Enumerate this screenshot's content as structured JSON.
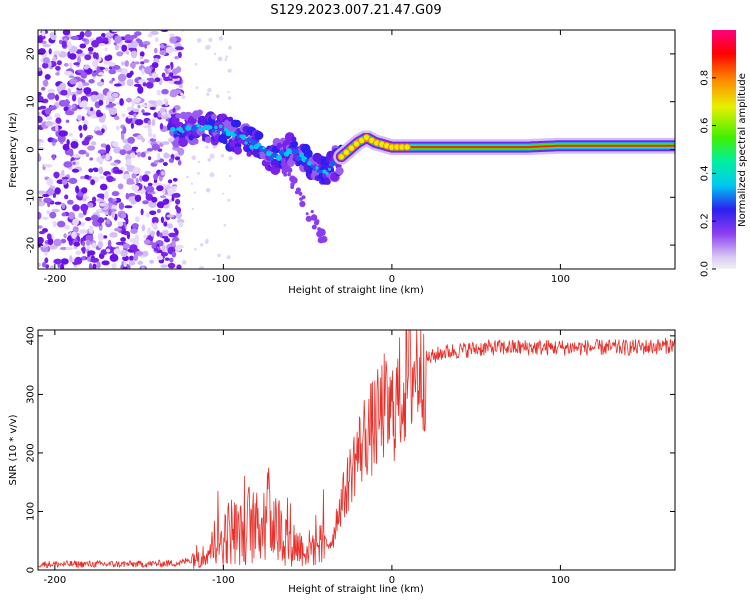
{
  "figure": {
    "title": "S129.2023.007.21.47.G09"
  },
  "colors": {
    "snr_line": "#e8302a",
    "axes": "#000000",
    "background": "#ffffff",
    "spectrogram_cmap": "hsv (purple→blue→cyan→green→yellow→red→magenta)"
  },
  "chart_data": [
    {
      "type": "heatmap",
      "title": "",
      "xlabel": "Height of straight line (km)",
      "ylabel": "Frequency (Hz)",
      "xlim": [
        -210,
        168
      ],
      "ylim": [
        -25,
        25
      ],
      "xticks": [
        -200,
        -100,
        0,
        100
      ],
      "yticks": [
        -20,
        -10,
        0,
        10,
        20
      ],
      "colorbar": {
        "label": "Normalized spectral amplitude",
        "range": [
          0.0,
          1.0
        ],
        "ticks": [
          0.0,
          0.2,
          0.4,
          0.6,
          0.8
        ]
      },
      "ridge": {
        "x": [
          -130,
          -120,
          -110,
          -100,
          -90,
          -80,
          -70,
          -60,
          -50,
          -45,
          -40,
          -35,
          -30,
          -25,
          -20,
          -15,
          -10,
          -5,
          0,
          10,
          20,
          40,
          60,
          80,
          100,
          120,
          140,
          168
        ],
        "y": [
          4,
          4.5,
          5,
          4,
          2.5,
          0.5,
          -1.5,
          0,
          -2.5,
          -4.5,
          -5,
          -3.5,
          -1.5,
          0,
          1.5,
          2.5,
          1.5,
          1,
          0.5,
          0.5,
          0.5,
          0.5,
          0.5,
          0.5,
          0.8,
          0.8,
          0.8,
          0.8
        ]
      },
      "noise_region_x": [
        -210,
        -125
      ]
    },
    {
      "type": "line",
      "title": "",
      "xlabel": "Height of straight line (km)",
      "ylabel": "SNR (10 * v/v)",
      "xlim": [
        -210,
        168
      ],
      "ylim": [
        0,
        410
      ],
      "xticks": [
        -200,
        -100,
        0,
        100
      ],
      "yticks": [
        0,
        100,
        200,
        300,
        400
      ],
      "series": [
        {
          "x": [
            -210,
            -180,
            -150,
            -125,
            -115,
            -105,
            -100,
            -95,
            -90,
            -85,
            -80,
            -75,
            -70,
            -65,
            -60,
            -55,
            -50,
            -45,
            -40,
            -35,
            -32,
            -28,
            -25,
            -22,
            -20,
            -17,
            -15,
            -12,
            -10,
            -7,
            -5,
            -2,
            0,
            3,
            5,
            8,
            10,
            15,
            20,
            25,
            30,
            40,
            50,
            60,
            80,
            100,
            120,
            140,
            160,
            168
          ],
          "y": [
            10,
            10,
            10,
            12,
            25,
            40,
            55,
            70,
            60,
            80,
            70,
            100,
            85,
            60,
            50,
            40,
            35,
            45,
            40,
            55,
            100,
            130,
            160,
            190,
            200,
            220,
            240,
            240,
            250,
            260,
            280,
            260,
            270,
            290,
            300,
            320,
            330,
            350,
            360,
            365,
            372,
            375,
            378,
            380,
            380,
            380,
            380,
            380,
            382,
            385
          ]
        }
      ]
    }
  ]
}
